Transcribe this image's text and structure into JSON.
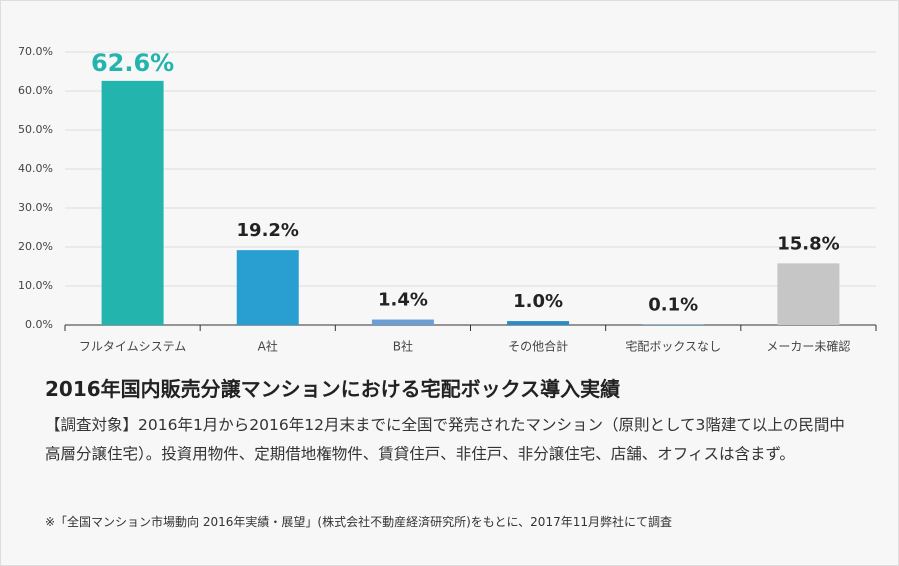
{
  "chart_data": {
    "type": "bar",
    "title": "2016年国内販売分譲マンションにおける宅配ボックス導入実績",
    "description": "【調査対象】2016年1月から2016年12月末までに全国で発売されたマンション（原則として3階建て以上の民間中高層分譲住宅）。投資用物件、定期借地権物件、賃貸住戸、非住戸、非分譲住宅、店舗、オフィスは含まず。",
    "note": "※「全国マンション市場動向 2016年実績・展望」(株式会社不動産経済研究所)をもとに、2017年11月弊社にて調査",
    "categories": [
      "フルタイムシステム",
      "A社",
      "B社",
      "その他合計",
      "宅配ボックスなし",
      "メーカー未確認"
    ],
    "values": [
      62.6,
      19.2,
      1.4,
      1.0,
      0.1,
      15.8
    ],
    "value_labels": [
      "62.6%",
      "19.2%",
      "1.4%",
      "1.0%",
      "0.1%",
      "15.8%"
    ],
    "colors": [
      "#24b4ae",
      "#289fd0",
      "#6a9fd6",
      "#2a8cc6",
      "#2a8cc6",
      "#c6c6c6"
    ],
    "ylim": [
      0,
      70
    ],
    "yticks": [
      {
        "value": 0,
        "label": "0.0%"
      },
      {
        "value": 10,
        "label": "10.0%"
      },
      {
        "value": 20,
        "label": "20.0%"
      },
      {
        "value": 30,
        "label": "30.0%"
      },
      {
        "value": 40,
        "label": "40.0%"
      },
      {
        "value": 50,
        "label": "50.0%"
      },
      {
        "value": 60,
        "label": "60.0%"
      },
      {
        "value": 70,
        "label": "70.0%"
      }
    ],
    "grid": true
  }
}
